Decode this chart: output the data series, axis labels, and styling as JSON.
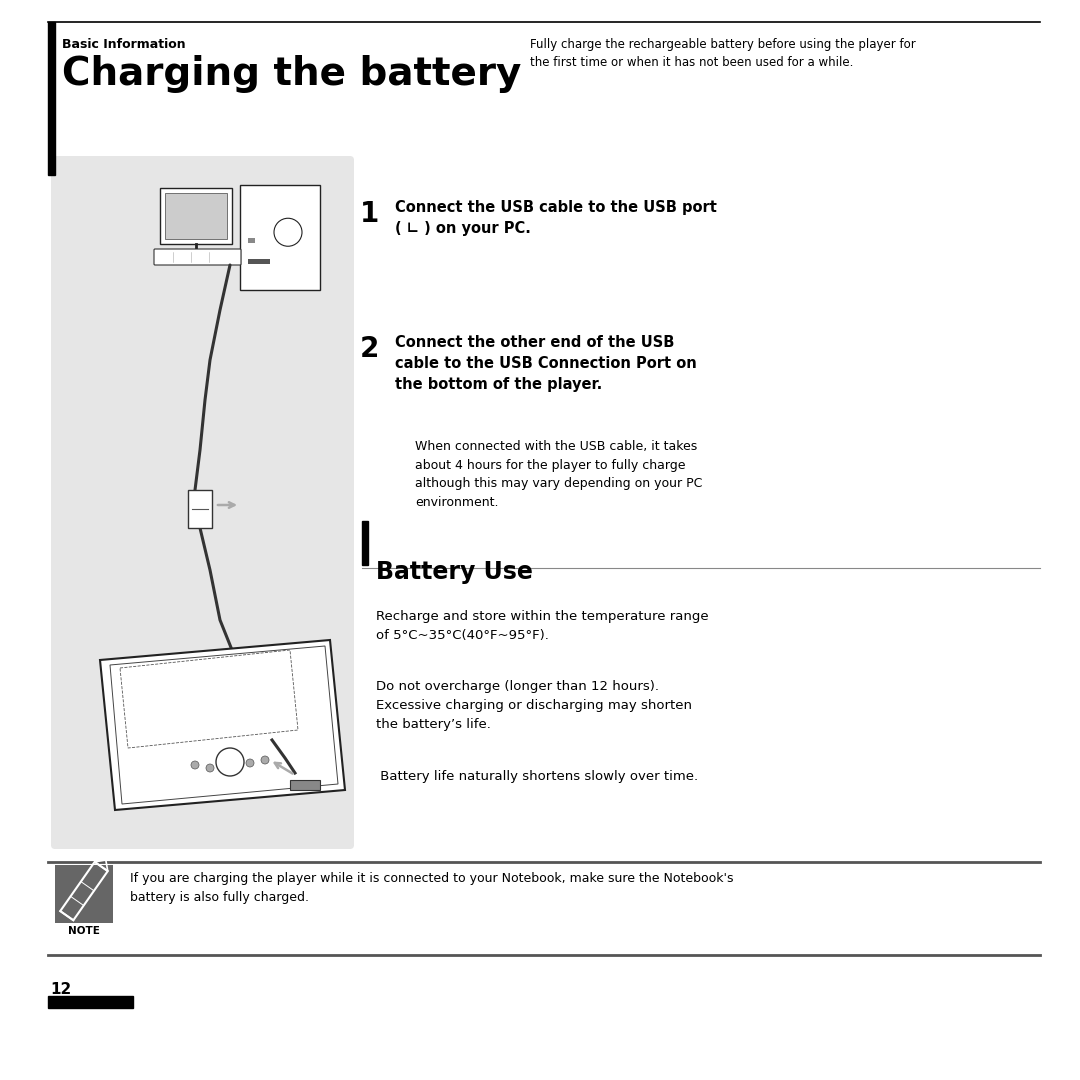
{
  "bg_color": "#ffffff",
  "text_color": "#000000",
  "section_label": "Basic Information",
  "main_title": "Charging the battery",
  "main_title_desc": "Fully charge the rechargeable battery before using the player for\nthe first time or when it has not been used for a while.",
  "image_panel_bg": "#e6e6e6",
  "step1_text_bold": "Connect the USB cable to the USB port\n( ∟ ) on your PC.",
  "step2_text_bold": "Connect the other end of the USB\ncable to the USB Connection Port on\nthe bottom of the player.",
  "step2_sub": "When connected with the USB cable, it takes\nabout 4 hours for the player to fully charge\nalthough this may vary depending on your PC\nenvironment.",
  "battery_section": "Battery Use",
  "battery_text1": "Recharge and store within the temperature range\nof 5°C~35°C(40°F~95°F).",
  "battery_text2": "Do not overcharge (longer than 12 hours).\nExcessive charging or discharging may shorten\nthe battery’s life.",
  "battery_text3": " Battery life naturally shortens slowly over time.",
  "note_text": "If you are charging the player while it is connected to your Notebook, make sure the Notebook's\nbattery is also fully charged.",
  "page_number": "12",
  "note_bg": "#666666"
}
